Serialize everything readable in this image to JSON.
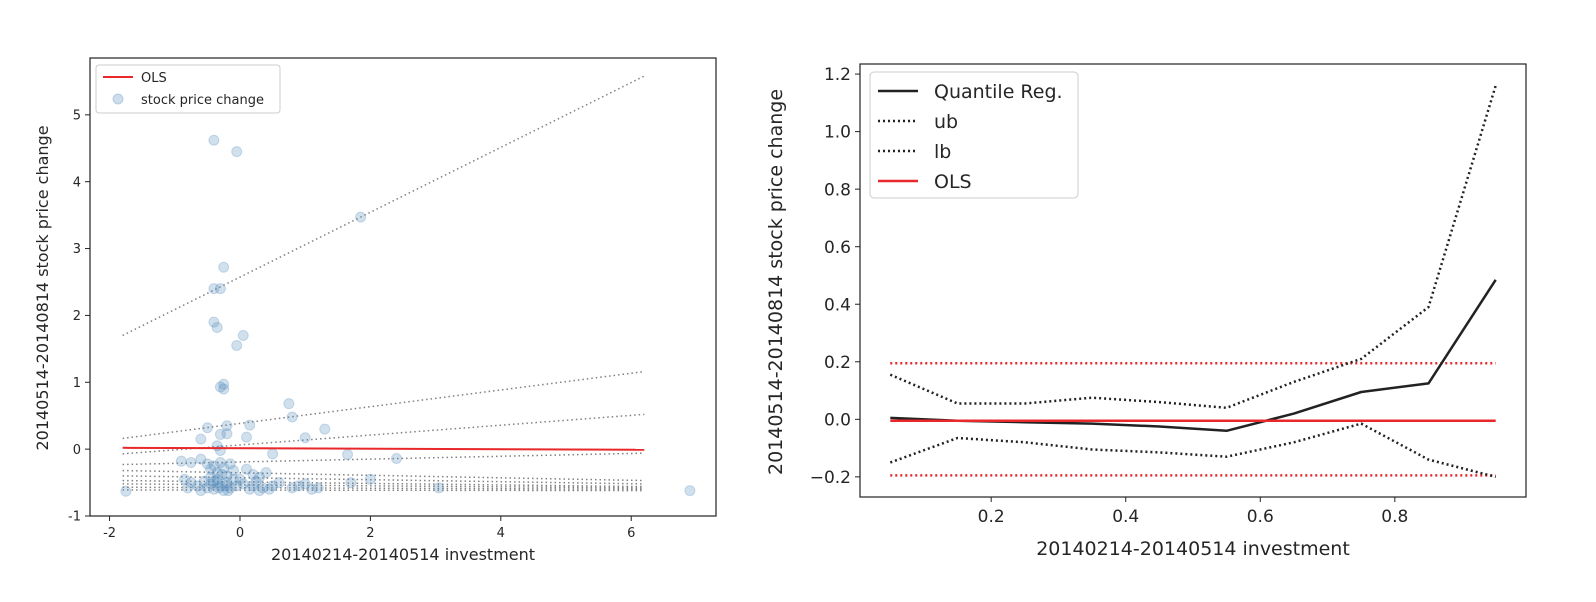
{
  "chart_data": [
    {
      "type": "scatter",
      "xlabel": "20140214-20140514 investment",
      "ylabel": "20140514-20140814 stock price change",
      "xlim": [
        -2.3,
        7.3
      ],
      "ylim": [
        -1.0,
        5.85
      ],
      "xticks": [
        -2,
        0,
        2,
        4,
        6
      ],
      "yticks": [
        -1,
        0,
        1,
        2,
        3,
        4,
        5
      ],
      "legend_position": "top-left",
      "colors": {
        "ols": "#e8282b",
        "points": "#5b8fbd",
        "quantile_lines": "#808080"
      },
      "legend": [
        {
          "label": "OLS",
          "kind": "line",
          "color": "#e8282b"
        },
        {
          "label": "stock price change",
          "kind": "marker",
          "color": "#5b8fbd"
        }
      ],
      "ols_line": {
        "x": [
          -1.8,
          6.2
        ],
        "y": [
          0.02,
          -0.01
        ]
      },
      "quantile_lines": [
        {
          "x": [
            -1.8,
            6.2
          ],
          "y": [
            1.7,
            5.58
          ]
        },
        {
          "x": [
            -1.8,
            6.2
          ],
          "y": [
            0.16,
            1.16
          ]
        },
        {
          "x": [
            -1.8,
            6.2
          ],
          "y": [
            -0.07,
            0.52
          ]
        },
        {
          "x": [
            -1.8,
            6.2
          ],
          "y": [
            -0.23,
            -0.06
          ]
        },
        {
          "x": [
            -1.8,
            6.2
          ],
          "y": [
            -0.32,
            -0.47
          ]
        },
        {
          "x": [
            -1.8,
            6.2
          ],
          "y": [
            -0.4,
            -0.52
          ]
        },
        {
          "x": [
            -1.8,
            6.2
          ],
          "y": [
            -0.47,
            -0.56
          ]
        },
        {
          "x": [
            -1.8,
            6.2
          ],
          "y": [
            -0.52,
            -0.58
          ]
        },
        {
          "x": [
            -1.8,
            6.2
          ],
          "y": [
            -0.57,
            -0.6
          ]
        },
        {
          "x": [
            -1.8,
            6.2
          ],
          "y": [
            -0.61,
            -0.62
          ]
        }
      ],
      "points": [
        [
          -0.4,
          4.62
        ],
        [
          -0.05,
          4.45
        ],
        [
          1.85,
          3.47
        ],
        [
          -0.25,
          2.72
        ],
        [
          -0.4,
          2.4
        ],
        [
          -0.3,
          2.4
        ],
        [
          -0.4,
          1.9
        ],
        [
          -0.35,
          1.82
        ],
        [
          0.05,
          1.7
        ],
        [
          -0.05,
          1.55
        ],
        [
          -0.25,
          0.97
        ],
        [
          -0.3,
          0.93
        ],
        [
          -0.25,
          0.9
        ],
        [
          0.75,
          0.68
        ],
        [
          0.8,
          0.48
        ],
        [
          1.3,
          0.3
        ],
        [
          -0.5,
          0.32
        ],
        [
          -0.2,
          0.35
        ],
        [
          0.15,
          0.36
        ],
        [
          -0.3,
          0.22
        ],
        [
          -0.2,
          0.23
        ],
        [
          0.1,
          0.18
        ],
        [
          1.0,
          0.17
        ],
        [
          -0.6,
          0.15
        ],
        [
          -0.35,
          0.05
        ],
        [
          -0.3,
          -0.02
        ],
        [
          0.5,
          -0.07
        ],
        [
          1.65,
          -0.08
        ],
        [
          2.4,
          -0.14
        ],
        [
          -0.9,
          -0.18
        ],
        [
          -0.75,
          -0.2
        ],
        [
          -0.6,
          -0.15
        ],
        [
          -0.5,
          -0.22
        ],
        [
          -0.45,
          -0.3
        ],
        [
          -0.4,
          -0.25
        ],
        [
          -0.35,
          -0.35
        ],
        [
          -0.3,
          -0.2
        ],
        [
          -0.25,
          -0.28
        ],
        [
          -0.2,
          -0.4
        ],
        [
          -0.15,
          -0.22
        ],
        [
          -0.1,
          -0.32
        ],
        [
          0.0,
          -0.45
        ],
        [
          0.1,
          -0.3
        ],
        [
          0.2,
          -0.38
        ],
        [
          0.3,
          -0.42
        ],
        [
          0.4,
          -0.35
        ],
        [
          -0.85,
          -0.45
        ],
        [
          -0.75,
          -0.5
        ],
        [
          -0.65,
          -0.55
        ],
        [
          -0.55,
          -0.48
        ],
        [
          -0.5,
          -0.58
        ],
        [
          -0.45,
          -0.52
        ],
        [
          -0.4,
          -0.6
        ],
        [
          -0.35,
          -0.5
        ],
        [
          -0.3,
          -0.55
        ],
        [
          -0.25,
          -0.62
        ],
        [
          -0.2,
          -0.5
        ],
        [
          -0.15,
          -0.58
        ],
        [
          -0.1,
          -0.45
        ],
        [
          -0.05,
          -0.55
        ],
        [
          0.05,
          -0.52
        ],
        [
          0.15,
          -0.6
        ],
        [
          0.25,
          -0.48
        ],
        [
          0.35,
          -0.58
        ],
        [
          0.5,
          -0.55
        ],
        [
          0.6,
          -0.5
        ],
        [
          0.8,
          -0.58
        ],
        [
          1.0,
          -0.52
        ],
        [
          1.2,
          -0.58
        ],
        [
          1.7,
          -0.5
        ],
        [
          2.0,
          -0.45
        ],
        [
          3.05,
          -0.58
        ],
        [
          -1.75,
          -0.63
        ],
        [
          -0.6,
          -0.62
        ],
        [
          0.3,
          -0.62
        ],
        [
          6.9,
          -0.62
        ],
        [
          -0.8,
          -0.58
        ],
        [
          -0.45,
          -0.42
        ],
        [
          -0.35,
          -0.45
        ],
        [
          -0.28,
          -0.38
        ],
        [
          -0.22,
          -0.55
        ],
        [
          -0.4,
          -0.48
        ],
        [
          -0.32,
          -0.58
        ],
        [
          -0.18,
          -0.62
        ],
        [
          0.2,
          -0.55
        ],
        [
          0.45,
          -0.6
        ],
        [
          0.9,
          -0.55
        ],
        [
          1.1,
          -0.6
        ]
      ]
    },
    {
      "type": "line",
      "xlabel": "20140214-20140514 investment",
      "ylabel": "20140514-20140814 stock price change",
      "xlim": [
        0.005,
        0.995
      ],
      "ylim": [
        -0.27,
        1.235
      ],
      "xticks": [
        0.2,
        0.4,
        0.6,
        0.8
      ],
      "yticks": [
        -0.2,
        0.0,
        0.2,
        0.4,
        0.6,
        0.8,
        1.0,
        1.2
      ],
      "ytick_labels": [
        "−0.2",
        "0.0",
        "0.2",
        "0.4",
        "0.6",
        "0.8",
        "1.0",
        "1.2"
      ],
      "legend_position": "top-left",
      "colors": {
        "quantile": "#222222",
        "bounds": "#222222",
        "ols": "#e8282b"
      },
      "legend": [
        {
          "label": "Quantile Reg.",
          "style": "solid",
          "color": "#222222"
        },
        {
          "label": "ub",
          "style": "dotted",
          "color": "#222222"
        },
        {
          "label": "lb",
          "style": "dotted",
          "color": "#222222"
        },
        {
          "label": "OLS",
          "style": "solid",
          "color": "#e8282b"
        }
      ],
      "x": [
        0.05,
        0.15,
        0.25,
        0.35,
        0.45,
        0.55,
        0.65,
        0.75,
        0.85,
        0.95
      ],
      "series": [
        {
          "name": "Quantile Reg.",
          "style": "solid",
          "values": [
            0.005,
            -0.005,
            -0.01,
            -0.015,
            -0.025,
            -0.04,
            0.02,
            0.095,
            0.125,
            0.485
          ]
        },
        {
          "name": "ub",
          "style": "dotted",
          "values": [
            0.155,
            0.055,
            0.055,
            0.075,
            0.06,
            0.04,
            0.13,
            0.21,
            0.39,
            1.16
          ]
        },
        {
          "name": "lb",
          "style": "dotted",
          "values": [
            -0.15,
            -0.065,
            -0.08,
            -0.105,
            -0.115,
            -0.13,
            -0.08,
            -0.015,
            -0.14,
            -0.2
          ]
        },
        {
          "name": "OLS",
          "style": "solid",
          "values": [
            -0.005,
            -0.005,
            -0.005,
            -0.005,
            -0.005,
            -0.005,
            -0.005,
            -0.005,
            -0.005,
            -0.005
          ]
        }
      ],
      "ols_bounds": [
        {
          "x": [
            0.05,
            0.95
          ],
          "y": [
            0.195,
            0.195
          ]
        },
        {
          "x": [
            0.05,
            0.95
          ],
          "y": [
            -0.195,
            -0.195
          ]
        }
      ]
    }
  ]
}
